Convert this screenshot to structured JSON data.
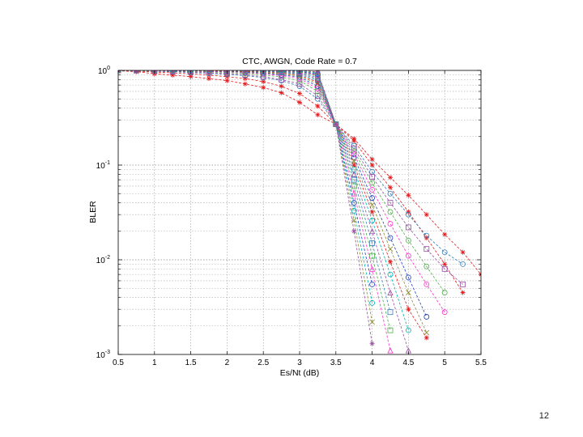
{
  "slide": {
    "page_number": "12"
  },
  "chart_data": {
    "type": "line",
    "title": "CTC, AWGN, Code Rate = 0.7",
    "xlabel": "Es/Nt (dB)",
    "ylabel": "BLER",
    "xlim": [
      0.5,
      5.5
    ],
    "ylim": [
      0.001,
      1
    ],
    "yscale": "log",
    "grid": "on (major and minor, dotted)",
    "legend": "none",
    "x_ticks": [
      "0.5",
      "1",
      "1.5",
      "2",
      "2.5",
      "3",
      "3.5",
      "4",
      "4.5",
      "5",
      "5.5"
    ],
    "y_ticks": [
      {
        "value": 1,
        "base": "10",
        "exp": "0"
      },
      {
        "value": 0.1,
        "base": "10",
        "exp": "-1"
      },
      {
        "value": 0.01,
        "base": "10",
        "exp": "-2"
      },
      {
        "value": 0.001,
        "base": "10",
        "exp": "-3"
      }
    ],
    "series": [
      {
        "color": "#e41a1c",
        "marker": "star",
        "x": [
          0.5,
          0.75,
          1,
          1.25,
          1.5,
          1.75,
          2,
          2.25,
          2.5,
          2.75,
          3,
          3.25,
          3.5,
          3.75,
          4,
          4.25,
          4.5,
          4.75,
          5,
          5.25,
          5.5
        ],
        "y": [
          0.99,
          0.97,
          0.92,
          0.89,
          0.86,
          0.82,
          0.78,
          0.72,
          0.66,
          0.58,
          0.46,
          0.34,
          0.27,
          0.19,
          0.115,
          0.074,
          0.048,
          0.03,
          0.0185,
          0.012,
          0.007
        ]
      },
      {
        "color": "#e41a1c",
        "marker": "star",
        "x": [
          0.5,
          0.75,
          1,
          1.25,
          1.5,
          1.75,
          2,
          2.25,
          2.5,
          2.75,
          3,
          3.25,
          3.5,
          3.75,
          4,
          4.25,
          4.5,
          4.75,
          5,
          5.25
        ],
        "y": [
          1,
          0.985,
          0.96,
          0.94,
          0.92,
          0.89,
          0.86,
          0.82,
          0.76,
          0.68,
          0.57,
          0.42,
          0.27,
          0.18,
          0.1,
          0.058,
          0.032,
          0.017,
          0.009,
          0.0045
        ]
      },
      {
        "color": "#377eb8",
        "marker": "circle",
        "x": [
          0.5,
          0.75,
          1,
          1.25,
          1.5,
          1.75,
          2,
          2.25,
          2.5,
          2.75,
          3,
          3.25,
          3.5,
          3.75,
          4,
          4.25,
          4.5,
          4.75,
          5,
          5.25
        ],
        "y": [
          1,
          0.99,
          0.98,
          0.965,
          0.95,
          0.93,
          0.91,
          0.88,
          0.84,
          0.78,
          0.68,
          0.5,
          0.27,
          0.16,
          0.085,
          0.05,
          0.03,
          0.018,
          0.012,
          0.009
        ]
      },
      {
        "color": "#984ea3",
        "marker": "square",
        "x": [
          0.5,
          0.75,
          1,
          1.25,
          1.5,
          1.75,
          2,
          2.25,
          2.5,
          2.75,
          3,
          3.25,
          3.5,
          3.75,
          4,
          4.25,
          4.5,
          4.75,
          5,
          5.25
        ],
        "y": [
          1,
          0.995,
          0.985,
          0.975,
          0.96,
          0.945,
          0.93,
          0.9,
          0.86,
          0.8,
          0.72,
          0.54,
          0.27,
          0.15,
          0.075,
          0.04,
          0.022,
          0.013,
          0.008,
          0.0055
        ]
      },
      {
        "color": "#4daf4a",
        "marker": "circle",
        "x": [
          0.5,
          0.75,
          1,
          1.25,
          1.5,
          1.75,
          2,
          2.25,
          2.5,
          2.75,
          3,
          3.25,
          3.5,
          3.75,
          4,
          4.25,
          4.5,
          4.75,
          5
        ],
        "y": [
          1,
          0.995,
          0.99,
          0.985,
          0.975,
          0.965,
          0.95,
          0.93,
          0.9,
          0.85,
          0.78,
          0.6,
          0.27,
          0.14,
          0.065,
          0.032,
          0.016,
          0.0085,
          0.0045
        ]
      },
      {
        "color": "#ff33cc",
        "marker": "circle",
        "x": [
          0.5,
          0.75,
          1,
          1.25,
          1.5,
          1.75,
          2,
          2.25,
          2.5,
          2.75,
          3,
          3.25,
          3.5,
          3.75,
          4,
          4.25,
          4.5,
          4.75,
          5
        ],
        "y": [
          1,
          1,
          0.995,
          0.99,
          0.985,
          0.975,
          0.965,
          0.95,
          0.92,
          0.88,
          0.82,
          0.64,
          0.27,
          0.13,
          0.055,
          0.024,
          0.011,
          0.0055,
          0.0028
        ]
      },
      {
        "color": "#1f3fbf",
        "marker": "circle",
        "x": [
          0.5,
          0.75,
          1,
          1.25,
          1.5,
          1.75,
          2,
          2.25,
          2.5,
          2.75,
          3,
          3.25,
          3.5,
          3.75,
          4,
          4.25,
          4.5,
          4.75
        ],
        "y": [
          1,
          1,
          1,
          0.995,
          0.99,
          0.985,
          0.975,
          0.96,
          0.94,
          0.9,
          0.85,
          0.68,
          0.27,
          0.12,
          0.045,
          0.017,
          0.0065,
          0.0025
        ]
      },
      {
        "color": "#8c8c2c",
        "marker": "x",
        "x": [
          0.5,
          0.75,
          1,
          1.25,
          1.5,
          1.75,
          2,
          2.25,
          2.5,
          2.75,
          3,
          3.25,
          3.5,
          3.75,
          4,
          4.25,
          4.5,
          4.75
        ],
        "y": [
          1,
          1,
          1,
          1,
          0.995,
          0.99,
          0.98,
          0.97,
          0.95,
          0.92,
          0.87,
          0.72,
          0.27,
          0.11,
          0.038,
          0.013,
          0.0045,
          0.0017
        ]
      },
      {
        "color": "#e41a1c",
        "marker": "star",
        "x": [
          0.5,
          0.75,
          1,
          1.25,
          1.5,
          1.75,
          2,
          2.25,
          2.5,
          2.75,
          3,
          3.25,
          3.5,
          3.75,
          4,
          4.25,
          4.5,
          4.75
        ],
        "y": [
          1,
          1,
          1,
          1,
          1,
          0.995,
          0.99,
          0.98,
          0.965,
          0.94,
          0.89,
          0.75,
          0.27,
          0.1,
          0.032,
          0.0095,
          0.003,
          0.0015
        ]
      },
      {
        "color": "#00b3b3",
        "marker": "circle",
        "x": [
          0.5,
          0.75,
          1,
          1.25,
          1.5,
          1.75,
          2,
          2.25,
          2.5,
          2.75,
          3,
          3.25,
          3.5,
          3.75,
          4,
          4.25,
          4.5
        ],
        "y": [
          1,
          1,
          1,
          1,
          1,
          1,
          0.995,
          0.99,
          0.975,
          0.955,
          0.91,
          0.78,
          0.27,
          0.09,
          0.026,
          0.007,
          0.0018
        ]
      },
      {
        "color": "#984ea3",
        "marker": "triangle",
        "x": [
          0.5,
          0.75,
          1,
          1.25,
          1.5,
          1.75,
          2,
          2.25,
          2.5,
          2.75,
          3,
          3.25,
          3.5,
          3.75,
          4,
          4.25,
          4.5
        ],
        "y": [
          1,
          1,
          1,
          1,
          1,
          1,
          1,
          0.995,
          0.985,
          0.965,
          0.93,
          0.81,
          0.27,
          0.08,
          0.02,
          0.0045,
          0.0011
        ]
      },
      {
        "color": "#377eb8",
        "marker": "square",
        "x": [
          0.5,
          0.75,
          1,
          1.25,
          1.5,
          1.75,
          2,
          2.25,
          2.5,
          2.75,
          3,
          3.25,
          3.5,
          3.75,
          4,
          4.25
        ],
        "y": [
          1,
          1,
          1,
          1,
          1,
          1,
          1,
          1,
          0.99,
          0.975,
          0.945,
          0.84,
          0.27,
          0.07,
          0.015,
          0.0028
        ]
      },
      {
        "color": "#4daf4a",
        "marker": "square",
        "x": [
          0.5,
          0.75,
          1,
          1.25,
          1.5,
          1.75,
          2,
          2.25,
          2.5,
          2.75,
          3,
          3.25,
          3.5,
          3.75,
          4,
          4.25
        ],
        "y": [
          1,
          1,
          1,
          1,
          1,
          1,
          1,
          1,
          1,
          0.985,
          0.96,
          0.87,
          0.27,
          0.06,
          0.011,
          0.0018
        ]
      },
      {
        "color": "#ff33cc",
        "marker": "triangle",
        "x": [
          0.5,
          0.75,
          1,
          1.25,
          1.5,
          1.75,
          2,
          2.25,
          2.5,
          2.75,
          3,
          3.25,
          3.5,
          3.75,
          4,
          4.25
        ],
        "y": [
          1,
          1,
          1,
          1,
          1,
          1,
          1,
          1,
          1,
          0.99,
          0.97,
          0.89,
          0.27,
          0.05,
          0.008,
          0.0011
        ]
      },
      {
        "color": "#1f3fbf",
        "marker": "circle",
        "x": [
          0.5,
          0.75,
          1,
          1.25,
          1.5,
          1.75,
          2,
          2.25,
          2.5,
          2.75,
          3,
          3.25,
          3.5,
          3.75,
          4
        ],
        "y": [
          1,
          1,
          1,
          1,
          1,
          1,
          1,
          1,
          1,
          1,
          0.98,
          0.91,
          0.27,
          0.04,
          0.0055
        ]
      },
      {
        "color": "#00b3b3",
        "marker": "circle",
        "x": [
          0.5,
          0.75,
          1,
          1.25,
          1.5,
          1.75,
          2,
          2.25,
          2.5,
          2.75,
          3,
          3.25,
          3.5,
          3.75,
          4
        ],
        "y": [
          1,
          1,
          1,
          1,
          1,
          1,
          1,
          1,
          1,
          1,
          0.99,
          0.93,
          0.27,
          0.033,
          0.0035
        ]
      },
      {
        "color": "#8c8c2c",
        "marker": "x",
        "x": [
          0.5,
          0.75,
          1,
          1.25,
          1.5,
          1.75,
          2,
          2.25,
          2.5,
          2.75,
          3,
          3.25,
          3.5,
          3.75,
          4
        ],
        "y": [
          1,
          1,
          1,
          1,
          1,
          1,
          1,
          1,
          1,
          1,
          1,
          0.95,
          0.27,
          0.026,
          0.0022
        ]
      },
      {
        "color": "#984ea3",
        "marker": "star",
        "x": [
          0.5,
          0.75,
          1,
          1.25,
          1.5,
          1.75,
          2,
          2.25,
          2.5,
          2.75,
          3,
          3.25,
          3.5,
          3.75,
          4
        ],
        "y": [
          1,
          1,
          1,
          1,
          1,
          1,
          1,
          1,
          1,
          1,
          1,
          0.965,
          0.27,
          0.02,
          0.0013
        ]
      }
    ]
  }
}
